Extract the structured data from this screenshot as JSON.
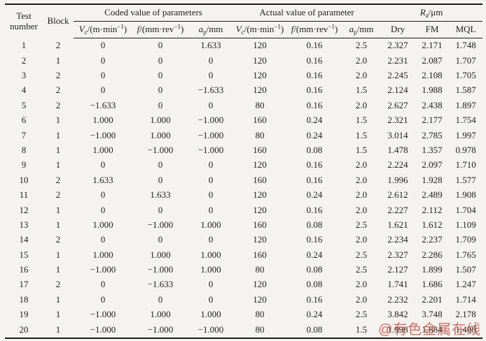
{
  "header": {
    "test_number_line1": "Test",
    "test_number_line2": "number",
    "block": "Block",
    "groups": {
      "coded": "Coded value of parameters",
      "actual": "Actual value of parameter",
      "ra": {
        "sym": "R",
        "sub": "a",
        "unit": "/μm"
      }
    },
    "cols": {
      "vc": {
        "sym": "V",
        "sub": "c",
        "unit": "/(m·min",
        "exp": "−1",
        "close": ")"
      },
      "f": {
        "sym": "f",
        "unit": "/(mm·rev",
        "exp": "−1",
        "close": ")"
      },
      "ap": {
        "sym": "a",
        "sub": "p",
        "unit": "/mm"
      },
      "dry": "Dry",
      "fm": "FM",
      "mql": "MQL"
    }
  },
  "rows": [
    [
      "1",
      "2",
      "0",
      "0",
      "1.633",
      "120",
      "0.16",
      "2.5",
      "2.327",
      "2.171",
      "1.748"
    ],
    [
      "2",
      "1",
      "0",
      "0",
      "0",
      "120",
      "0.16",
      "2.0",
      "2.231",
      "2.087",
      "1.707"
    ],
    [
      "3",
      "2",
      "0",
      "0",
      "0",
      "120",
      "0.16",
      "2.0",
      "2.245",
      "2.108",
      "1.705"
    ],
    [
      "4",
      "2",
      "0",
      "0",
      "−1.633",
      "120",
      "0.16",
      "1.5",
      "2.124",
      "1.988",
      "1.587"
    ],
    [
      "5",
      "2",
      "−1.633",
      "0",
      "0",
      "80",
      "0.16",
      "2.0",
      "2.627",
      "2.438",
      "1.897"
    ],
    [
      "6",
      "1",
      "1.000",
      "1.000",
      "−1.000",
      "160",
      "0.24",
      "1.5",
      "2.321",
      "2.177",
      "1.754"
    ],
    [
      "7",
      "1",
      "−1.000",
      "1.000",
      "−1.000",
      "80",
      "0.24",
      "1.5",
      "3.014",
      "2.785",
      "1.997"
    ],
    [
      "8",
      "1",
      "1.000",
      "−1.000",
      "−1.000",
      "160",
      "0.08",
      "1.5",
      "1.478",
      "1.357",
      "0.978"
    ],
    [
      "9",
      "1",
      "0",
      "0",
      "0",
      "120",
      "0.16",
      "2.0",
      "2.224",
      "2.097",
      "1.710"
    ],
    [
      "10",
      "2",
      "1.633",
      "0",
      "0",
      "160",
      "0.16",
      "2.0",
      "1.996",
      "1.928",
      "1.577"
    ],
    [
      "11",
      "2",
      "0",
      "1.633",
      "0",
      "120",
      "0.24",
      "2.0",
      "2.612",
      "2.489",
      "1.908"
    ],
    [
      "12",
      "1",
      "0",
      "0",
      "0",
      "120",
      "0.16",
      "2.0",
      "2.227",
      "2.112",
      "1.704"
    ],
    [
      "13",
      "1",
      "1.000",
      "−1.000",
      "1.000",
      "160",
      "0.08",
      "2.5",
      "1.621",
      "1.612",
      "1.109"
    ],
    [
      "14",
      "2",
      "0",
      "0",
      "0",
      "120",
      "0.16",
      "2.0",
      "2.234",
      "2.237",
      "1.709"
    ],
    [
      "15",
      "1",
      "1.000",
      "1.000",
      "1.000",
      "160",
      "0.24",
      "2.5",
      "2.327",
      "2.286",
      "1.765"
    ],
    [
      "16",
      "1",
      "−1.000",
      "−1.000",
      "1.000",
      "80",
      "0.08",
      "2.5",
      "2.127",
      "1.899",
      "1.507"
    ],
    [
      "17",
      "2",
      "0",
      "−1.633",
      "0",
      "120",
      "0.08",
      "2.0",
      "1.741",
      "1.686",
      "1.247"
    ],
    [
      "18",
      "1",
      "0",
      "0",
      "0",
      "120",
      "0.16",
      "2.0",
      "2.232",
      "2.201",
      "1.714"
    ],
    [
      "19",
      "1",
      "−1.000",
      "1.000",
      "1.000",
      "80",
      "0.24",
      "2.5",
      "3.842",
      "3.748",
      "2.178"
    ],
    [
      "20",
      "1",
      "−1.000",
      "−1.000",
      "−1.000",
      "80",
      "0.08",
      "1.5",
      "1.998",
      "1.884",
      "1.408"
    ]
  ],
  "watermark": "@有色金属在线",
  "colors": {
    "background": "#f4f3ef",
    "text": "#1f1f1f",
    "rule": "#1c1c1c",
    "watermark": "#cb483e"
  }
}
